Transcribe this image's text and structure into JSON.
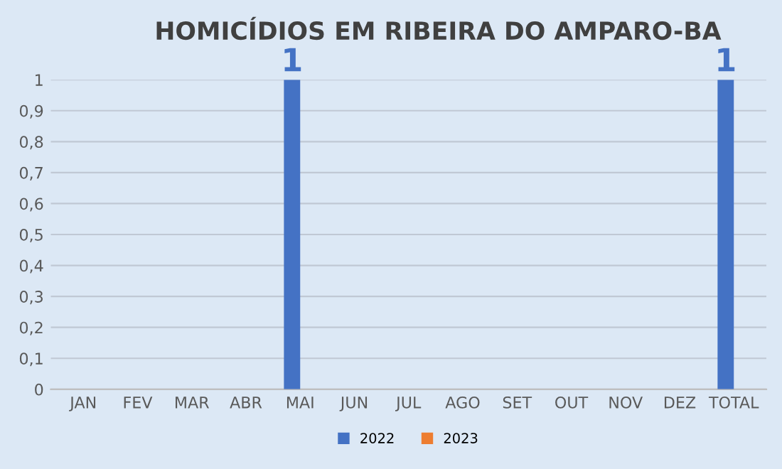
{
  "chart_data": {
    "type": "bar",
    "title": "HOMICÍDIOS EM RIBEIRA DO AMPARO-BA",
    "categories": [
      "JAN",
      "FEV",
      "MAR",
      "ABR",
      "MAI",
      "JUN",
      "JUL",
      "AGO",
      "SET",
      "OUT",
      "NOV",
      "DEZ",
      "TOTAL"
    ],
    "series": [
      {
        "name": "2022",
        "color": "#4472c4",
        "values": [
          0,
          0,
          0,
          0,
          1,
          0,
          0,
          0,
          0,
          0,
          0,
          0,
          1
        ],
        "value_labels": [
          null,
          null,
          null,
          null,
          "1",
          null,
          null,
          null,
          null,
          null,
          null,
          null,
          "1"
        ]
      },
      {
        "name": "2023",
        "color": "#ed7d31",
        "values": [
          0,
          0,
          0,
          0,
          0,
          0,
          0,
          0,
          0,
          0,
          0,
          0,
          0
        ]
      }
    ],
    "ylim": [
      0,
      1
    ],
    "yticks": [
      0,
      {
        "value": 0.1,
        "label": "0,1"
      },
      {
        "value": 0.2,
        "label": "0,2"
      },
      {
        "value": 0.3,
        "label": "0,3"
      },
      {
        "value": 0.4,
        "label": "0,4"
      },
      {
        "value": 0.5,
        "label": "0,5"
      },
      {
        "value": 0.6,
        "label": "0,6"
      },
      {
        "value": 0.7,
        "label": "0,7"
      },
      {
        "value": 0.8,
        "label": "0,8"
      },
      {
        "value": 0.9,
        "label": "0,9"
      },
      1
    ],
    "grid": "y",
    "legend": "bottom"
  }
}
